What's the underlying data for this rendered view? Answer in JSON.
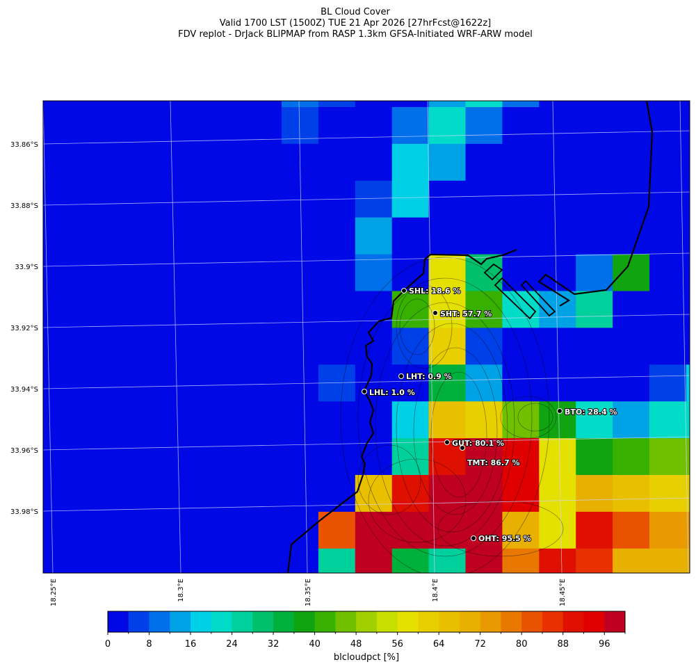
{
  "title": {
    "line1": "BL Cloud Cover",
    "line2": "Valid 1700 LST (1500Z) TUE 21 Apr 2026 [27hrFcst@1622z]",
    "line3": "FDV replot - DrJack BLIPMAP from RASP 1.3km GFSA-Initiated WRF-ARW model"
  },
  "lat_labels": [
    "33.86°S",
    "33.88°S",
    "33.9°S",
    "33.92°S",
    "33.94°S",
    "33.96°S",
    "33.98°S"
  ],
  "lon_labels": [
    "18.25°E",
    "18.3°E",
    "18.35°E",
    "18.4°E",
    "18.45°E"
  ],
  "colorbar": {
    "label": "blcloudpct [%]",
    "bounds": [
      0,
      4,
      8,
      12,
      16,
      20,
      24,
      28,
      32,
      36,
      40,
      44,
      48,
      52,
      56,
      60,
      64,
      68,
      72,
      76,
      80,
      84,
      88,
      92,
      96,
      100
    ],
    "tick_labels": [
      "0",
      "8",
      "16",
      "24",
      "32",
      "40",
      "48",
      "56",
      "64",
      "72",
      "80",
      "88",
      "96"
    ],
    "colors": [
      "#0008e6",
      "#0040e8",
      "#0070ea",
      "#00a2e6",
      "#00d0e6",
      "#00dcc8",
      "#00d09c",
      "#00c06c",
      "#00b03c",
      "#10a510",
      "#38b000",
      "#70c000",
      "#a0d000",
      "#c8e000",
      "#e4e000",
      "#e8d000",
      "#e8c000",
      "#e8b000",
      "#e89a00",
      "#e87800",
      "#e85200",
      "#e83000",
      "#e01000",
      "#e00000",
      "#c00020"
    ]
  },
  "stations": [
    {
      "label": "SHL: 18.6 %"
    },
    {
      "label": "SHT: 57.7 %"
    },
    {
      "label": "LHT: 0.9 %"
    },
    {
      "label": "LHL: 1.0 %"
    },
    {
      "label": "BTO: 28.4 %"
    },
    {
      "label": "GUT: 80.1 %"
    },
    {
      "label": "TMT: 86.7 %"
    },
    {
      "label": "OHT: 95.5 %"
    }
  ],
  "chart_data": {
    "type": "heatmap",
    "variable": "blcloudpct [%]",
    "background_value": 2,
    "grid_values": [
      [
        10,
        6,
        2,
        2,
        14,
        22,
        10,
        2,
        2,
        2,
        2,
        2
      ],
      [
        6,
        2,
        2,
        10,
        22,
        10,
        2,
        2,
        2,
        2,
        2,
        2
      ],
      [
        2,
        2,
        2,
        18,
        14,
        2,
        2,
        2,
        2,
        2,
        2,
        2
      ],
      [
        2,
        2,
        6,
        18,
        2,
        2,
        2,
        2,
        2,
        2,
        2,
        2
      ],
      [
        2,
        2,
        14,
        2,
        2,
        2,
        2,
        2,
        2,
        2,
        2,
        2
      ],
      [
        2,
        2,
        10,
        2,
        58,
        30,
        2,
        2,
        10,
        38,
        2,
        2
      ],
      [
        2,
        2,
        2,
        42,
        58,
        42,
        22,
        14,
        26,
        2,
        2,
        2
      ],
      [
        2,
        2,
        2,
        6,
        62,
        6,
        2,
        2,
        2,
        2,
        2,
        2
      ],
      [
        2,
        6,
        2,
        2,
        34,
        14,
        2,
        2,
        2,
        2,
        6,
        18
      ],
      [
        2,
        2,
        2,
        18,
        66,
        62,
        46,
        38,
        22,
        14,
        22,
        22
      ],
      [
        2,
        2,
        2,
        26,
        90,
        98,
        94,
        58,
        38,
        42,
        46,
        46
      ],
      [
        2,
        2,
        66,
        90,
        98,
        98,
        94,
        58,
        70,
        66,
        62,
        62
      ],
      [
        2,
        82,
        98,
        98,
        98,
        98,
        70,
        58,
        90,
        82,
        74,
        74
      ],
      [
        2,
        26,
        98,
        34,
        26,
        98,
        78,
        90,
        86,
        70,
        70,
        70
      ]
    ]
  }
}
